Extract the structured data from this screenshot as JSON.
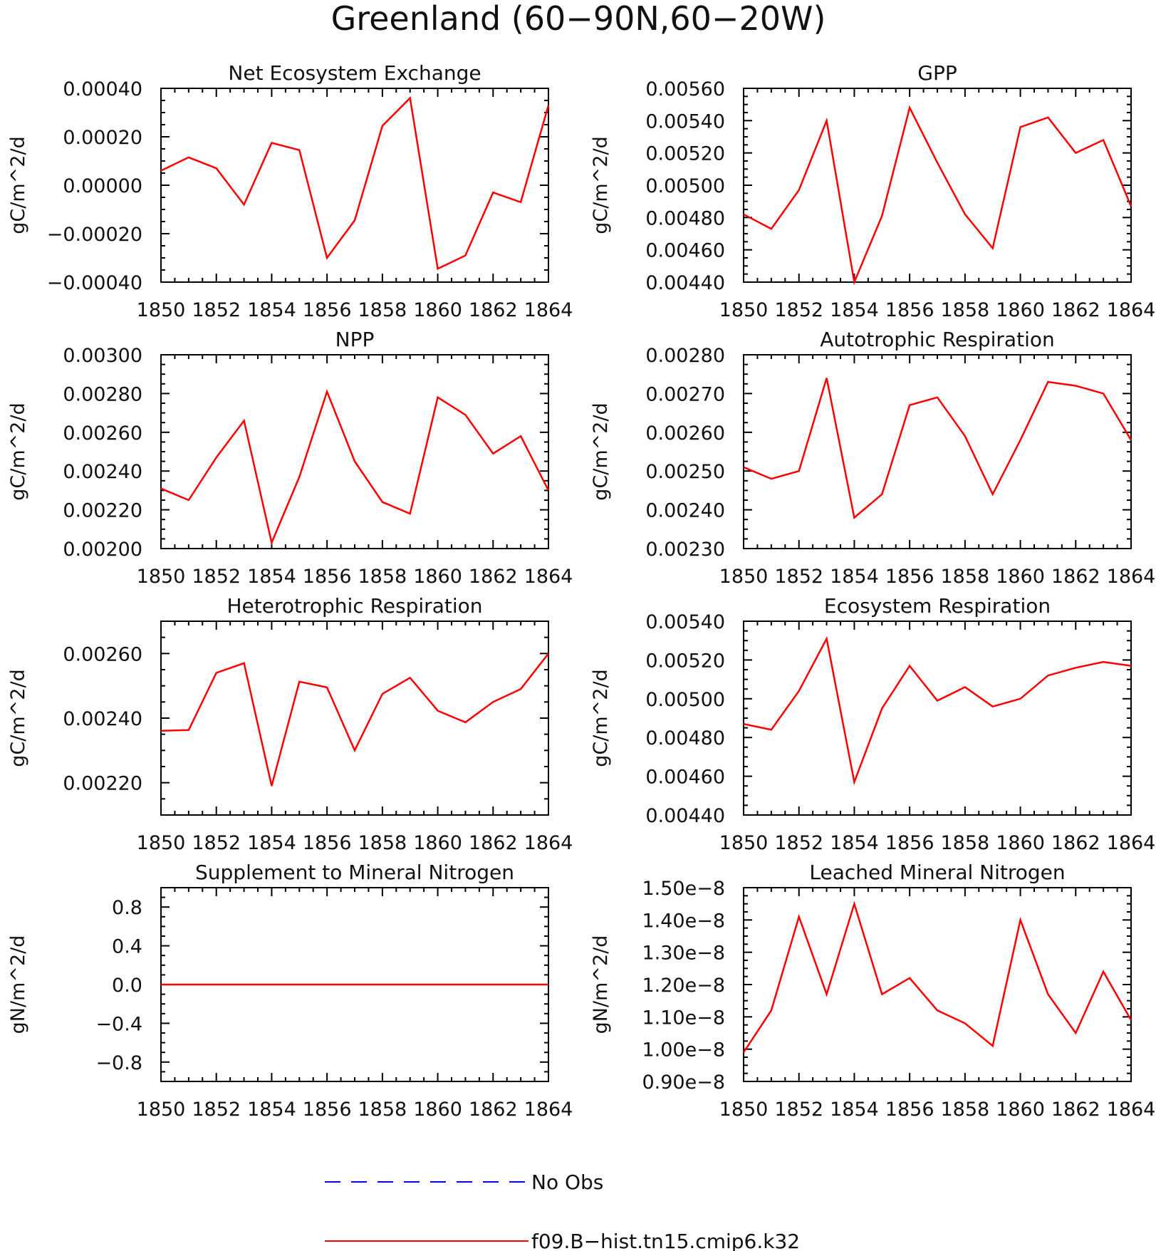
{
  "title": "Greenland (60−90N,60−20W)",
  "colors": {
    "model": "#ff0000",
    "obs": "#0000ff",
    "axis": "#000000"
  },
  "legend": [
    {
      "label": "No Obs",
      "style": "dashed",
      "color": "#0000ff"
    },
    {
      "label": "f09.B−hist.tn15.cmip6.k32",
      "style": "solid",
      "color": "#ff0000"
    }
  ],
  "chart_data": [
    {
      "type": "line",
      "title": "Net Ecosystem Exchange",
      "ylabel": "gC/m^2/d",
      "xlim": [
        1850,
        1864
      ],
      "ylim": [
        -0.0004,
        0.0004
      ],
      "xticks": [
        "1850",
        "1852",
        "1854",
        "1856",
        "1858",
        "1860",
        "1862",
        "1864"
      ],
      "yticks": [
        {
          "value": 0.0004,
          "label": "0.00040"
        },
        {
          "value": 0.0002,
          "label": "0.00020"
        },
        {
          "value": 0.0,
          "label": "0.00000"
        },
        {
          "value": -0.0002,
          "label": "−0.00020"
        },
        {
          "value": -0.0004,
          "label": "−0.00040"
        }
      ],
      "x": [
        1850,
        1851,
        1852,
        1853,
        1854,
        1855,
        1856,
        1857,
        1858,
        1859,
        1860,
        1861,
        1862,
        1863,
        1864
      ],
      "series": [
        {
          "values": [
            6e-05,
            0.000115,
            7e-05,
            -8e-05,
            0.000175,
            0.000145,
            -0.0003,
            -0.000145,
            0.000245,
            0.00036,
            -0.000345,
            -0.00029,
            -3e-05,
            -7e-05,
            0.00033
          ]
        }
      ]
    },
    {
      "type": "line",
      "title": "GPP",
      "ylabel": "gC/m^2/d",
      "xlim": [
        1850,
        1864
      ],
      "ylim": [
        0.0044,
        0.0056
      ],
      "xticks": [
        "1850",
        "1852",
        "1854",
        "1856",
        "1858",
        "1860",
        "1862",
        "1864"
      ],
      "yticks": [
        {
          "value": 0.0056,
          "label": "0.00560"
        },
        {
          "value": 0.0054,
          "label": "0.00540"
        },
        {
          "value": 0.0052,
          "label": "0.00520"
        },
        {
          "value": 0.005,
          "label": "0.00500"
        },
        {
          "value": 0.0048,
          "label": "0.00480"
        },
        {
          "value": 0.0046,
          "label": "0.00460"
        },
        {
          "value": 0.0044,
          "label": "0.00440"
        }
      ],
      "x": [
        1850,
        1851,
        1852,
        1853,
        1854,
        1855,
        1856,
        1857,
        1858,
        1859,
        1860,
        1861,
        1862,
        1863,
        1864
      ],
      "series": [
        {
          "values": [
            0.00482,
            0.00473,
            0.00497,
            0.0054,
            0.0044,
            0.00481,
            0.00548,
            0.00514,
            0.00482,
            0.00461,
            0.00536,
            0.00542,
            0.0052,
            0.00528,
            0.00487
          ]
        }
      ]
    },
    {
      "type": "line",
      "title": "NPP",
      "ylabel": "gC/m^2/d",
      "xlim": [
        1850,
        1864
      ],
      "ylim": [
        0.002,
        0.003
      ],
      "xticks": [
        "1850",
        "1852",
        "1854",
        "1856",
        "1858",
        "1860",
        "1862",
        "1864"
      ],
      "yticks": [
        {
          "value": 0.003,
          "label": "0.00300"
        },
        {
          "value": 0.0028,
          "label": "0.00280"
        },
        {
          "value": 0.0026,
          "label": "0.00260"
        },
        {
          "value": 0.0024,
          "label": "0.00240"
        },
        {
          "value": 0.0022,
          "label": "0.00220"
        },
        {
          "value": 0.002,
          "label": "0.00200"
        }
      ],
      "x": [
        1850,
        1851,
        1852,
        1853,
        1854,
        1855,
        1856,
        1857,
        1858,
        1859,
        1860,
        1861,
        1862,
        1863,
        1864
      ],
      "series": [
        {
          "values": [
            0.00231,
            0.00225,
            0.00247,
            0.00266,
            0.00203,
            0.00237,
            0.00281,
            0.00245,
            0.00224,
            0.00218,
            0.00278,
            0.00269,
            0.00249,
            0.00258,
            0.0023
          ]
        }
      ]
    },
    {
      "type": "line",
      "title": "Autotrophic Respiration",
      "ylabel": "gC/m^2/d",
      "xlim": [
        1850,
        1864
      ],
      "ylim": [
        0.0023,
        0.0028
      ],
      "xticks": [
        "1850",
        "1852",
        "1854",
        "1856",
        "1858",
        "1860",
        "1862",
        "1864"
      ],
      "yticks": [
        {
          "value": 0.0028,
          "label": "0.00280"
        },
        {
          "value": 0.0027,
          "label": "0.00270"
        },
        {
          "value": 0.0026,
          "label": "0.00260"
        },
        {
          "value": 0.0025,
          "label": "0.00250"
        },
        {
          "value": 0.0024,
          "label": "0.00240"
        },
        {
          "value": 0.0023,
          "label": "0.00230"
        }
      ],
      "x": [
        1850,
        1851,
        1852,
        1853,
        1854,
        1855,
        1856,
        1857,
        1858,
        1859,
        1860,
        1861,
        1862,
        1863,
        1864
      ],
      "series": [
        {
          "values": [
            0.00251,
            0.00248,
            0.0025,
            0.00274,
            0.00238,
            0.00244,
            0.00267,
            0.00269,
            0.00259,
            0.00244,
            0.00258,
            0.00273,
            0.00272,
            0.0027,
            0.00258
          ]
        }
      ]
    },
    {
      "type": "line",
      "title": "Heterotrophic Respiration",
      "ylabel": "gC/m^2/d",
      "xlim": [
        1850,
        1864
      ],
      "ylim": [
        0.0021,
        0.0027
      ],
      "xticks": [
        "1850",
        "1852",
        "1854",
        "1856",
        "1858",
        "1860",
        "1862",
        "1864"
      ],
      "yticks": [
        {
          "value": 0.0026,
          "label": "0.00260"
        },
        {
          "value": 0.0024,
          "label": "0.00240"
        },
        {
          "value": 0.0022,
          "label": "0.00220"
        }
      ],
      "x": [
        1850,
        1851,
        1852,
        1853,
        1854,
        1855,
        1856,
        1857,
        1858,
        1859,
        1860,
        1861,
        1862,
        1863,
        1864
      ],
      "series": [
        {
          "values": [
            0.002361,
            0.002363,
            0.00254,
            0.00257,
            0.00219,
            0.002513,
            0.002495,
            0.0023,
            0.002475,
            0.002525,
            0.002423,
            0.002387,
            0.00245,
            0.00249,
            0.0026
          ]
        }
      ]
    },
    {
      "type": "line",
      "title": "Ecosystem Respiration",
      "ylabel": "gC/m^2/d",
      "xlim": [
        1850,
        1864
      ],
      "ylim": [
        0.0044,
        0.0054
      ],
      "xticks": [
        "1850",
        "1852",
        "1854",
        "1856",
        "1858",
        "1860",
        "1862",
        "1864"
      ],
      "yticks": [
        {
          "value": 0.0054,
          "label": "0.00540"
        },
        {
          "value": 0.0052,
          "label": "0.00520"
        },
        {
          "value": 0.005,
          "label": "0.00500"
        },
        {
          "value": 0.0048,
          "label": "0.00480"
        },
        {
          "value": 0.0046,
          "label": "0.00460"
        },
        {
          "value": 0.0044,
          "label": "0.00440"
        }
      ],
      "x": [
        1850,
        1851,
        1852,
        1853,
        1854,
        1855,
        1856,
        1857,
        1858,
        1859,
        1860,
        1861,
        1862,
        1863,
        1864
      ],
      "series": [
        {
          "values": [
            0.00487,
            0.00484,
            0.00504,
            0.00531,
            0.00457,
            0.00495,
            0.00517,
            0.00499,
            0.00506,
            0.00496,
            0.005,
            0.00512,
            0.00516,
            0.00519,
            0.00517
          ]
        }
      ]
    },
    {
      "type": "line",
      "title": "Supplement to Mineral Nitrogen",
      "ylabel": "gN/m^2/d",
      "xlim": [
        1850,
        1864
      ],
      "ylim": [
        -1.0,
        1.0
      ],
      "xticks": [
        "1850",
        "1852",
        "1854",
        "1856",
        "1858",
        "1860",
        "1862",
        "1864"
      ],
      "yticks": [
        {
          "value": 0.8,
          "label": "0.8"
        },
        {
          "value": 0.4,
          "label": "0.4"
        },
        {
          "value": 0.0,
          "label": "0.0"
        },
        {
          "value": -0.4,
          "label": "−0.4"
        },
        {
          "value": -0.8,
          "label": "−0.8"
        }
      ],
      "x": [
        1850,
        1851,
        1852,
        1853,
        1854,
        1855,
        1856,
        1857,
        1858,
        1859,
        1860,
        1861,
        1862,
        1863,
        1864
      ],
      "series": [
        {
          "values": [
            0,
            0,
            0,
            0,
            0,
            0,
            0,
            0,
            0,
            0,
            0,
            0,
            0,
            0,
            0
          ]
        }
      ]
    },
    {
      "type": "line",
      "title": "Leached Mineral Nitrogen",
      "ylabel": "gN/m^2/d",
      "xlim": [
        1850,
        1864
      ],
      "ylim": [
        9e-09,
        1.5e-08
      ],
      "xticks": [
        "1850",
        "1852",
        "1854",
        "1856",
        "1858",
        "1860",
        "1862",
        "1864"
      ],
      "yticks": [
        {
          "value": 1.5e-08,
          "label": "1.50e−8"
        },
        {
          "value": 1.4e-08,
          "label": "1.40e−8"
        },
        {
          "value": 1.3e-08,
          "label": "1.30e−8"
        },
        {
          "value": 1.2e-08,
          "label": "1.20e−8"
        },
        {
          "value": 1.1e-08,
          "label": "1.10e−8"
        },
        {
          "value": 1e-08,
          "label": "1.00e−8"
        },
        {
          "value": 9e-09,
          "label": "0.90e−8"
        }
      ],
      "x": [
        1850,
        1851,
        1852,
        1853,
        1854,
        1855,
        1856,
        1857,
        1858,
        1859,
        1860,
        1861,
        1862,
        1863,
        1864
      ],
      "series": [
        {
          "values": [
            9.9e-09,
            1.12e-08,
            1.41e-08,
            1.17e-08,
            1.45e-08,
            1.17e-08,
            1.22e-08,
            1.12e-08,
            1.08e-08,
            1.01e-08,
            1.4e-08,
            1.17e-08,
            1.05e-08,
            1.24e-08,
            1.09e-08
          ]
        }
      ]
    }
  ]
}
